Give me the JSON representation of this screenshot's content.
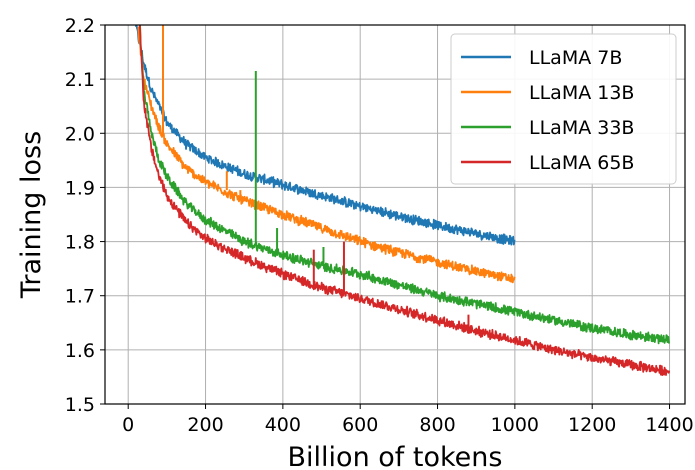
{
  "chart_data": {
    "type": "line",
    "xlabel": "Billion of tokens",
    "ylabel": "Training loss",
    "xlim": [
      -60,
      1440
    ],
    "ylim": [
      1.5,
      2.2
    ],
    "xticks": [
      0,
      200,
      400,
      600,
      800,
      1000,
      1200,
      1400
    ],
    "yticks": [
      1.5,
      1.6,
      1.7,
      1.8,
      1.9,
      2.0,
      2.1,
      2.2
    ],
    "grid": true,
    "legend_position": "top-right",
    "series": [
      {
        "name": "LLaMA 7B",
        "color": "#1f77b4",
        "x": [
          20,
          40,
          60,
          80,
          100,
          150,
          200,
          300,
          400,
          500,
          600,
          700,
          800,
          900,
          1000
        ],
        "y": [
          2.2,
          2.13,
          2.08,
          2.05,
          2.02,
          1.98,
          1.955,
          1.925,
          1.905,
          1.885,
          1.865,
          1.847,
          1.83,
          1.815,
          1.8
        ]
      },
      {
        "name": "LLaMA 13B",
        "color": "#ff7f0e",
        "x": [
          25,
          40,
          60,
          80,
          100,
          150,
          200,
          300,
          400,
          500,
          600,
          700,
          800,
          900,
          1000
        ],
        "y": [
          2.2,
          2.1,
          2.05,
          2.01,
          1.98,
          1.935,
          1.91,
          1.875,
          1.85,
          1.825,
          1.8,
          1.78,
          1.762,
          1.745,
          1.73
        ]
      },
      {
        "name": "LLaMA 33B",
        "color": "#2ca02c",
        "x": [
          30,
          40,
          60,
          80,
          100,
          150,
          200,
          300,
          400,
          500,
          600,
          700,
          800,
          900,
          1000,
          1100,
          1200,
          1300,
          1400
        ],
        "y": [
          2.2,
          2.08,
          2.0,
          1.95,
          1.92,
          1.87,
          1.84,
          1.8,
          1.775,
          1.755,
          1.74,
          1.72,
          1.7,
          1.685,
          1.67,
          1.655,
          1.64,
          1.628,
          1.618
        ]
      },
      {
        "name": "LLaMA 65B",
        "color": "#d62728",
        "x": [
          30,
          40,
          60,
          80,
          100,
          150,
          200,
          300,
          400,
          500,
          600,
          700,
          800,
          900,
          1000,
          1100,
          1200,
          1300,
          1400
        ],
        "y": [
          2.2,
          2.06,
          1.97,
          1.92,
          1.885,
          1.835,
          1.805,
          1.77,
          1.74,
          1.715,
          1.695,
          1.675,
          1.655,
          1.635,
          1.618,
          1.6,
          1.585,
          1.572,
          1.56
        ]
      }
    ],
    "spikes": [
      {
        "series": "LLaMA 13B",
        "x": 90,
        "base": 2.0,
        "peak": 2.2
      },
      {
        "series": "LLaMA 13B",
        "x": 255,
        "base": 1.895,
        "peak": 1.93
      },
      {
        "series": "LLaMA 13B",
        "x": 290,
        "base": 1.88,
        "peak": 1.895
      },
      {
        "series": "LLaMA 33B",
        "x": 330,
        "base": 1.795,
        "peak": 2.115
      },
      {
        "series": "LLaMA 33B",
        "x": 385,
        "base": 1.78,
        "peak": 1.825
      },
      {
        "series": "LLaMA 33B",
        "x": 505,
        "base": 1.755,
        "peak": 1.79
      },
      {
        "series": "LLaMA 65B",
        "x": 480,
        "base": 1.718,
        "peak": 1.785
      },
      {
        "series": "LLaMA 65B",
        "x": 558,
        "base": 1.703,
        "peak": 1.8
      },
      {
        "series": "LLaMA 65B",
        "x": 880,
        "base": 1.64,
        "peak": 1.665
      }
    ]
  }
}
